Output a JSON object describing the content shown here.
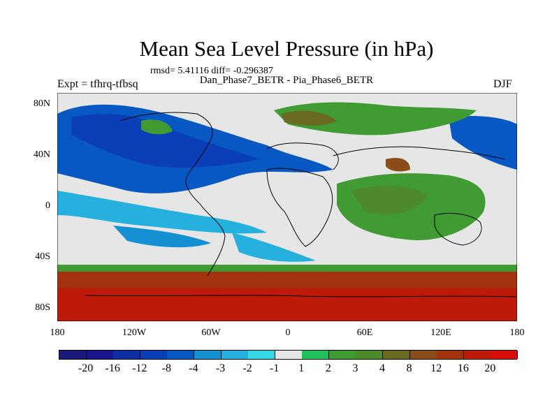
{
  "title": "Mean Sea Level Pressure (in hPa)",
  "stats": "rmsd= 5.41116 diff= -0.296387",
  "subtitle": "Dan_Phase7_BETR - Pia_Phase6_BETR",
  "experiment": "Expt = tfhrq-tfbsq",
  "season": "DJF",
  "y_ticks": [
    "80N",
    "40N",
    "0",
    "40S",
    "80S"
  ],
  "x_ticks": [
    "180",
    "120W",
    "60W",
    "0",
    "60E",
    "120E",
    "180"
  ],
  "colorbar": {
    "levels": [
      "-20",
      "-16",
      "-12",
      "-8",
      "-4",
      "-3",
      "-2",
      "-1",
      "1",
      "2",
      "3",
      "4",
      "8",
      "12",
      "16",
      "20"
    ],
    "colors": [
      "#1a1a7a",
      "#17168f",
      "#0f2fa3",
      "#0b3fb8",
      "#0858c3",
      "#1590d3",
      "#25b0dd",
      "#35d8e5",
      "#e6e6e6",
      "#1fc15a",
      "#3f9b32",
      "#4d8a2b",
      "#6b6a22",
      "#8a4d1a",
      "#a3330f",
      "#bd1a0a",
      "#d80d0d"
    ]
  },
  "palette": {
    "land_outline": "#000000",
    "strong_negative": "#0b3fb8",
    "moderate_negative": "#25b0dd",
    "near_zero": "#e6e6e6",
    "moderate_positive": "#3f9b32",
    "strong_positive": "#bd1a0a"
  }
}
